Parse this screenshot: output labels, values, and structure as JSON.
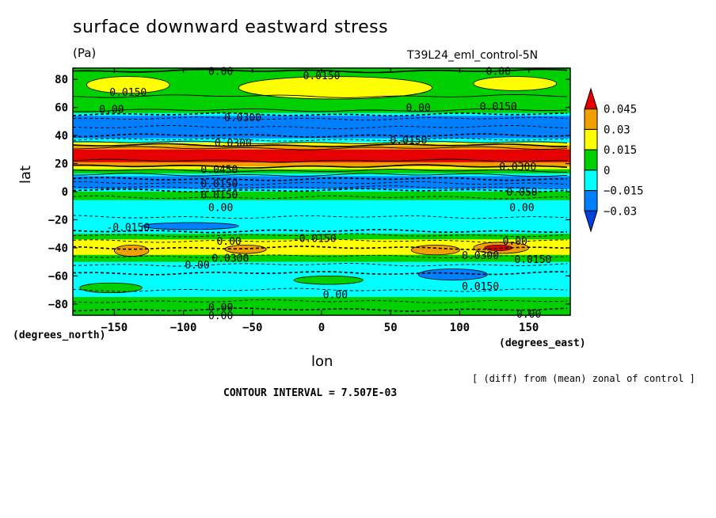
{
  "header": {
    "title": "surface downward eastward stress",
    "units": "(Pa)",
    "run_name": "T39L24_eml_control-5N"
  },
  "footer": {
    "diff_note": "[ (diff) from (mean) zonal of control ]",
    "contour_interval": "CONTOUR INTERVAL = 7.507E-03"
  },
  "chart_data": {
    "type": "heatmap",
    "title": "surface downward eastward stress",
    "xlabel": "lon",
    "ylabel": "lat",
    "x_units": "(degrees_east)",
    "y_units": "(degrees_north)",
    "xlim": [
      -180,
      180
    ],
    "ylim": [
      -88,
      88
    ],
    "x_ticks": [
      -150,
      -100,
      -50,
      0,
      50,
      100,
      150
    ],
    "y_ticks": [
      80,
      60,
      40,
      20,
      0,
      -20,
      -40,
      -60,
      -80
    ],
    "colorbar": {
      "labels": [
        "0.045",
        "0.03",
        "0.015",
        "0",
        "-0.015",
        "-0.03"
      ],
      "colors": [
        "#e60000",
        "#f0a000",
        "#ffff00",
        "#00d000",
        "#00ffff",
        "#0080ff",
        "#0040e0"
      ]
    },
    "lat_bands": [
      {
        "lat_from": 88,
        "lat_to": 84,
        "color": "#00d000"
      },
      {
        "lat_from": 84,
        "lat_to": 64,
        "color": "#00d000"
      },
      {
        "lat_from": 64,
        "lat_to": 56,
        "color": "#00d000"
      },
      {
        "lat_from": 56,
        "lat_to": 54,
        "color": "#00ffff"
      },
      {
        "lat_from": 54,
        "lat_to": 38,
        "color": "#0080ff"
      },
      {
        "lat_from": 38,
        "lat_to": 35,
        "color": "#00ffff"
      },
      {
        "lat_from": 35,
        "lat_to": 33,
        "color": "#ffff00"
      },
      {
        "lat_from": 33,
        "lat_to": 30,
        "color": "#f0a000"
      },
      {
        "lat_from": 30,
        "lat_to": 21,
        "color": "#e60000"
      },
      {
        "lat_from": 21,
        "lat_to": 18,
        "color": "#f0a000"
      },
      {
        "lat_from": 18,
        "lat_to": 16,
        "color": "#ffff00"
      },
      {
        "lat_from": 16,
        "lat_to": 13,
        "color": "#00d000"
      },
      {
        "lat_from": 13,
        "lat_to": 11,
        "color": "#00ffff"
      },
      {
        "lat_from": 11,
        "lat_to": 2,
        "color": "#0080ff"
      },
      {
        "lat_from": 2,
        "lat_to": 0,
        "color": "#00ffff"
      },
      {
        "lat_from": 0,
        "lat_to": -2,
        "color": "#00d000"
      },
      {
        "lat_from": -2,
        "lat_to": -6,
        "color": "#00d000"
      },
      {
        "lat_from": -6,
        "lat_to": -30,
        "color": "#00ffff"
      },
      {
        "lat_from": -30,
        "lat_to": -34,
        "color": "#00d000"
      },
      {
        "lat_from": -34,
        "lat_to": -45,
        "color": "#ffff00"
      },
      {
        "lat_from": -45,
        "lat_to": -50,
        "color": "#00d000"
      },
      {
        "lat_from": -50,
        "lat_to": -75,
        "color": "#00ffff"
      },
      {
        "lat_from": -75,
        "lat_to": -82,
        "color": "#00d000"
      },
      {
        "lat_from": -82,
        "lat_to": -88,
        "color": "#00d000"
      }
    ],
    "patches": [
      {
        "lon_from": -170,
        "lon_to": -110,
        "lat_from": 82,
        "lat_to": 70,
        "color": "#ffff00"
      },
      {
        "lon_from": -60,
        "lon_to": 80,
        "lat_from": 82,
        "lat_to": 66,
        "color": "#ffff00"
      },
      {
        "lon_from": 110,
        "lon_to": 170,
        "lat_from": 82,
        "lat_to": 72,
        "color": "#ffff00"
      },
      {
        "lon_from": -150,
        "lon_to": -125,
        "lat_from": -38,
        "lat_to": -46,
        "color": "#f0a000"
      },
      {
        "lon_from": -70,
        "lon_to": -40,
        "lat_from": -38,
        "lat_to": -44,
        "color": "#f0a000"
      },
      {
        "lon_from": 65,
        "lon_to": 100,
        "lat_from": -38,
        "lat_to": -45,
        "color": "#f0a000"
      },
      {
        "lon_from": 110,
        "lon_to": 150,
        "lat_from": -36,
        "lat_to": -44,
        "color": "#f0a000"
      },
      {
        "lon_from": 118,
        "lon_to": 138,
        "lat_from": -38,
        "lat_to": -42,
        "color": "#e60000"
      },
      {
        "lon_from": -130,
        "lon_to": -60,
        "lat_from": -22,
        "lat_to": -27,
        "color": "#0080ff"
      },
      {
        "lon_from": 70,
        "lon_to": 120,
        "lat_from": -55,
        "lat_to": -63,
        "color": "#0080ff"
      },
      {
        "lon_from": -175,
        "lon_to": -130,
        "lat_from": -65,
        "lat_to": -72,
        "color": "#00d000"
      },
      {
        "lon_from": -20,
        "lon_to": 30,
        "lat_from": -60,
        "lat_to": -66,
        "color": "#00d000"
      }
    ],
    "contour_lats": [
      86,
      68,
      58,
      55,
      52,
      46,
      40,
      37,
      35,
      33,
      31,
      22,
      18,
      15,
      12,
      9,
      6,
      3,
      1,
      -4,
      -18,
      -28,
      -31,
      -35,
      -40,
      -46,
      -52,
      -58,
      -70,
      -78,
      -84
    ],
    "contour_labels": [
      {
        "text": "0.00",
        "lon": -73,
        "lat": 86
      },
      {
        "text": "0.0150",
        "lon": 0,
        "lat": 83
      },
      {
        "text": "0.00",
        "lon": 128,
        "lat": 86
      },
      {
        "text": "0.0150",
        "lon": -140,
        "lat": 71
      },
      {
        "text": "0.00",
        "lon": -152,
        "lat": 59
      },
      {
        "text": "0.0300",
        "lon": -57,
        "lat": 53
      },
      {
        "text": "0.00",
        "lon": 70,
        "lat": 60
      },
      {
        "text": "0.0150",
        "lon": 128,
        "lat": 61
      },
      {
        "text": "0.0300",
        "lon": -64,
        "lat": 35
      },
      {
        "text": "0.0150",
        "lon": 63,
        "lat": 37
      },
      {
        "text": "0.0450",
        "lon": -74,
        "lat": 16
      },
      {
        "text": "0.0300",
        "lon": 142,
        "lat": 18
      },
      {
        "text": "0.0150",
        "lon": -74,
        "lat": 6
      },
      {
        "text": "0.0150",
        "lon": -74,
        "lat": -2
      },
      {
        "text": "0.050",
        "lon": 145,
        "lat": 0
      },
      {
        "text": "0.00",
        "lon": -73,
        "lat": -11
      },
      {
        "text": "0.00",
        "lon": 145,
        "lat": -11
      },
      {
        "text": "-0.0150",
        "lon": -140,
        "lat": -25
      },
      {
        "text": "-0.0150",
        "lon": -5,
        "lat": -33
      },
      {
        "text": "0.00",
        "lon": -67,
        "lat": -35
      },
      {
        "text": "0.0300",
        "lon": -66,
        "lat": -47
      },
      {
        "text": "0.00",
        "lon": -90,
        "lat": -52
      },
      {
        "text": "0.0300",
        "lon": 115,
        "lat": -45
      },
      {
        "text": "0.0150",
        "lon": 153,
        "lat": -48
      },
      {
        "text": "0.00",
        "lon": 140,
        "lat": -35
      },
      {
        "text": "0.0150",
        "lon": 115,
        "lat": -67
      },
      {
        "text": "0.00",
        "lon": 10,
        "lat": -73
      },
      {
        "text": "0.00",
        "lon": -73,
        "lat": -82
      },
      {
        "text": "0.00",
        "lon": -73,
        "lat": -88
      },
      {
        "text": "0.00",
        "lon": 150,
        "lat": -87
      }
    ]
  }
}
